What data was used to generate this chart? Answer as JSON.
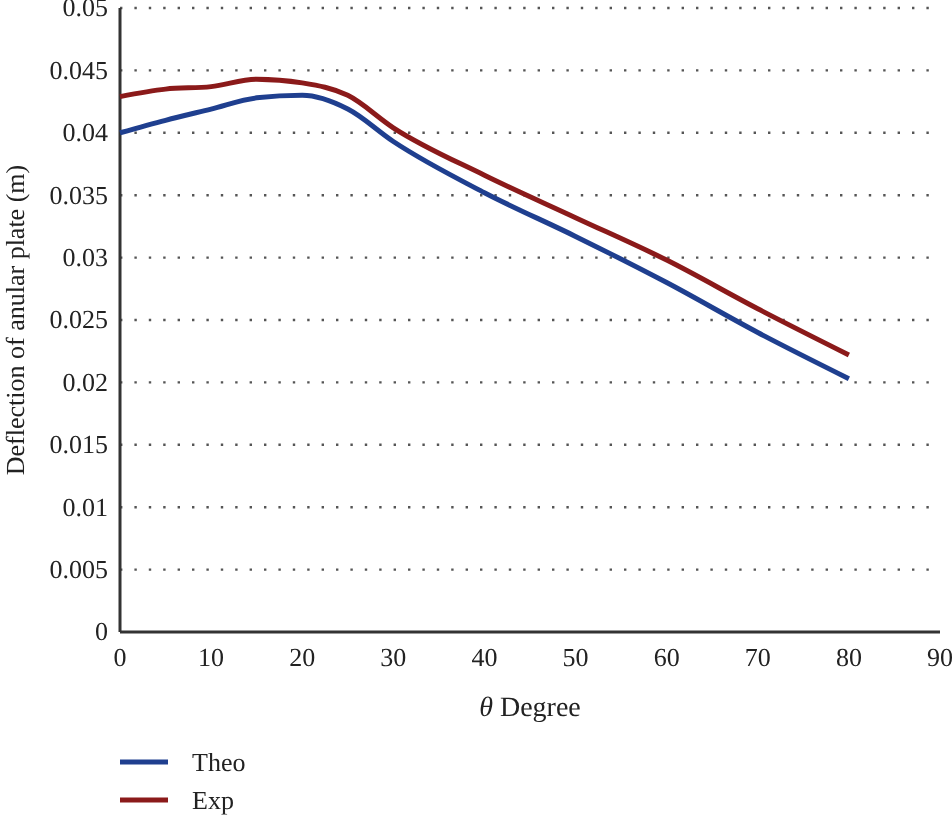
{
  "chart_data": {
    "type": "line",
    "xlabel": "θ Degree",
    "ylabel": "Deflection of anular plate (m)",
    "x": [
      0,
      5,
      10,
      15,
      20,
      25,
      30,
      40,
      50,
      60,
      70,
      80
    ],
    "series": [
      {
        "name": "Theo",
        "color": "#1f3f8f",
        "values": [
          0.04,
          0.041,
          0.0419,
          0.0428,
          0.043,
          0.0419,
          0.0393,
          0.0352,
          0.0317,
          0.028,
          0.024,
          0.0203
        ]
      },
      {
        "name": "Exp",
        "color": "#8b1a1a",
        "values": [
          0.0429,
          0.0435,
          0.0437,
          0.0443,
          0.044,
          0.043,
          0.0404,
          0.0366,
          0.0332,
          0.0298,
          0.0259,
          0.0222
        ]
      }
    ],
    "xlim": [
      0,
      90
    ],
    "xticks": [
      0,
      10,
      20,
      30,
      40,
      50,
      60,
      70,
      80,
      90
    ],
    "ylim": [
      0,
      0.05
    ],
    "yticks": [
      0,
      0.005,
      0.01,
      0.015,
      0.02,
      0.025,
      0.03,
      0.035,
      0.04,
      0.045,
      0.05
    ],
    "grid": "y",
    "legend": "bottom left",
    "line_style": "solid",
    "marker": "none"
  }
}
